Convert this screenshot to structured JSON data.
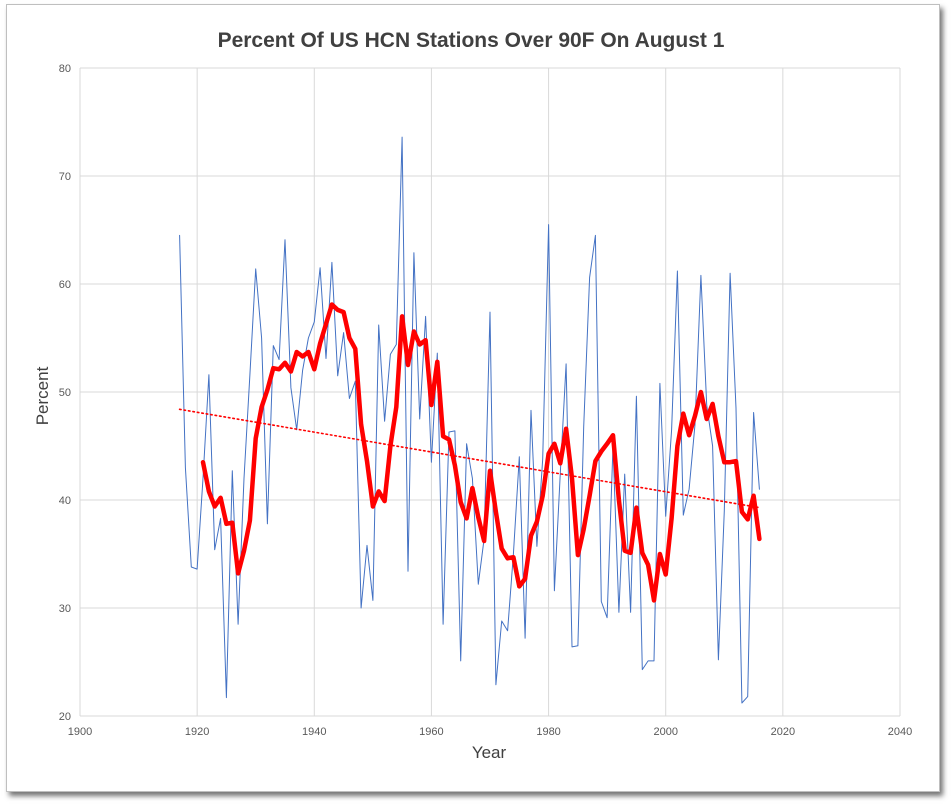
{
  "chart_data": {
    "type": "line",
    "title": "Percent Of US HCN Stations Over 90F On August 1",
    "xlabel": "Year",
    "ylabel": "Percent",
    "xlim": [
      1900,
      2040
    ],
    "ylim": [
      20,
      80
    ],
    "xticks": [
      1900,
      1920,
      1940,
      1960,
      1980,
      2000,
      2020,
      2040
    ],
    "yticks": [
      20,
      30,
      40,
      50,
      60,
      70,
      80
    ],
    "grid": true,
    "legend": "none",
    "series": [
      {
        "style": "thin-line",
        "color": "#4472c4",
        "x": [
          1917,
          1918,
          1919,
          1920,
          1921,
          1922,
          1923,
          1924,
          1925,
          1926,
          1927,
          1928,
          1929,
          1930,
          1931,
          1932,
          1933,
          1934,
          1935,
          1936,
          1937,
          1938,
          1939,
          1940,
          1941,
          1942,
          1943,
          1944,
          1945,
          1946,
          1947,
          1948,
          1949,
          1950,
          1951,
          1952,
          1953,
          1954,
          1955,
          1956,
          1957,
          1958,
          1959,
          1960,
          1961,
          1962,
          1963,
          1964,
          1965,
          1966,
          1967,
          1968,
          1969,
          1970,
          1971,
          1972,
          1973,
          1974,
          1975,
          1976,
          1977,
          1978,
          1979,
          1980,
          1981,
          1982,
          1983,
          1984,
          1985,
          1986,
          1987,
          1988,
          1989,
          1990,
          1991,
          1992,
          1993,
          1994,
          1995,
          1996,
          1997,
          1998,
          1999,
          2000,
          2001,
          2002,
          2003,
          2004,
          2005,
          2006,
          2007,
          2008,
          2009,
          2010,
          2011,
          2012,
          2013,
          2014,
          2015,
          2016
        ],
        "y": [
          64.5,
          43,
          33.8,
          33.6,
          42,
          51.6,
          35.4,
          38.3,
          21.7,
          42.7,
          28.5,
          42,
          51.6,
          61.4,
          55,
          37.8,
          54.3,
          53,
          64.1,
          50.4,
          46.5,
          52,
          55,
          56.5,
          61.5,
          53.1,
          62,
          51.5,
          55.5,
          49.4,
          51,
          30,
          35.8,
          30.7,
          56.2,
          47.3,
          53.5,
          54.4,
          73.6,
          33.4,
          62.9,
          47.5,
          57,
          43.5,
          53.6,
          28.5,
          46.3,
          46.4,
          25.1,
          45.2,
          42,
          32.2,
          36.4,
          57.4,
          22.9,
          28.8,
          27.9,
          35,
          44,
          27.2,
          48.3,
          35.7,
          43.8,
          65.5,
          31.6,
          42.5,
          52.6,
          26.4,
          26.5,
          46.8,
          60.6,
          64.5,
          30.6,
          29.1,
          45,
          29.6,
          42.4,
          29.6,
          49.6,
          24.3,
          25.1,
          25.1,
          50.8,
          38.5,
          46.5,
          61.2,
          38.6,
          41,
          47,
          60.8,
          48.8,
          45,
          25.2,
          39,
          61,
          48.5,
          21.2,
          21.8,
          48.1,
          41
        ]
      },
      {
        "style": "moving-average",
        "color": "#ff0000",
        "x": [
          1921,
          1922,
          1923,
          1924,
          1925,
          1926,
          1927,
          1928,
          1929,
          1930,
          1931,
          1932,
          1933,
          1934,
          1935,
          1936,
          1937,
          1938,
          1939,
          1940,
          1941,
          1942,
          1943,
          1944,
          1945,
          1946,
          1947,
          1948,
          1949,
          1950,
          1951,
          1952,
          1953,
          1954,
          1955,
          1956,
          1957,
          1958,
          1959,
          1960,
          1961,
          1962,
          1963,
          1964,
          1965,
          1966,
          1967,
          1968,
          1969,
          1970,
          1971,
          1972,
          1973,
          1974,
          1975,
          1976,
          1977,
          1978,
          1979,
          1980,
          1981,
          1982,
          1983,
          1984,
          1985,
          1986,
          1987,
          1988,
          1989,
          1990,
          1991,
          1992,
          1993,
          1994,
          1995,
          1996,
          1997,
          1998,
          1999,
          2000,
          2001,
          2002,
          2003,
          2004,
          2005,
          2006,
          2007,
          2008,
          2009,
          2010,
          2011,
          2012,
          2013,
          2014,
          2015,
          2016
        ],
        "y": [
          43.5,
          40.8,
          39.4,
          40.2,
          37.8,
          37.9,
          33.2,
          35.3,
          38.1,
          45.7,
          48.6,
          50.2,
          52.2,
          52.1,
          52.7,
          51.9,
          53.7,
          53.3,
          53.7,
          52.1,
          54.5,
          56.3,
          58.1,
          57.6,
          57.4,
          55,
          54,
          47,
          43.6,
          39.4,
          40.8,
          39.9,
          45,
          48.6,
          57,
          52.5,
          55.6,
          54.4,
          54.8,
          48.8,
          52.8,
          45.9,
          45.6,
          43.2,
          39.8,
          38.3,
          41.1,
          38.4,
          36.2,
          42.7,
          38.9,
          35.5,
          34.6,
          34.7,
          32,
          32.7,
          36.7,
          38,
          40.4,
          44.3,
          45.2,
          43.4,
          46.6,
          42,
          34.9,
          37.3,
          40.4,
          43.6,
          44.5,
          45.2,
          46,
          40,
          35.3,
          35.1,
          39.3,
          35.1,
          34,
          30.7,
          35,
          33.1,
          38.3,
          45,
          48,
          46,
          47.8,
          50,
          47.5,
          48.9,
          45.9,
          43.5,
          43.5,
          43.6,
          38.9,
          38.2,
          40.4,
          36.4
        ]
      },
      {
        "style": "trend-dotted",
        "color": "#ff0000",
        "x": [
          1917,
          2016
        ],
        "y": [
          48.4,
          39.3
        ]
      }
    ]
  }
}
